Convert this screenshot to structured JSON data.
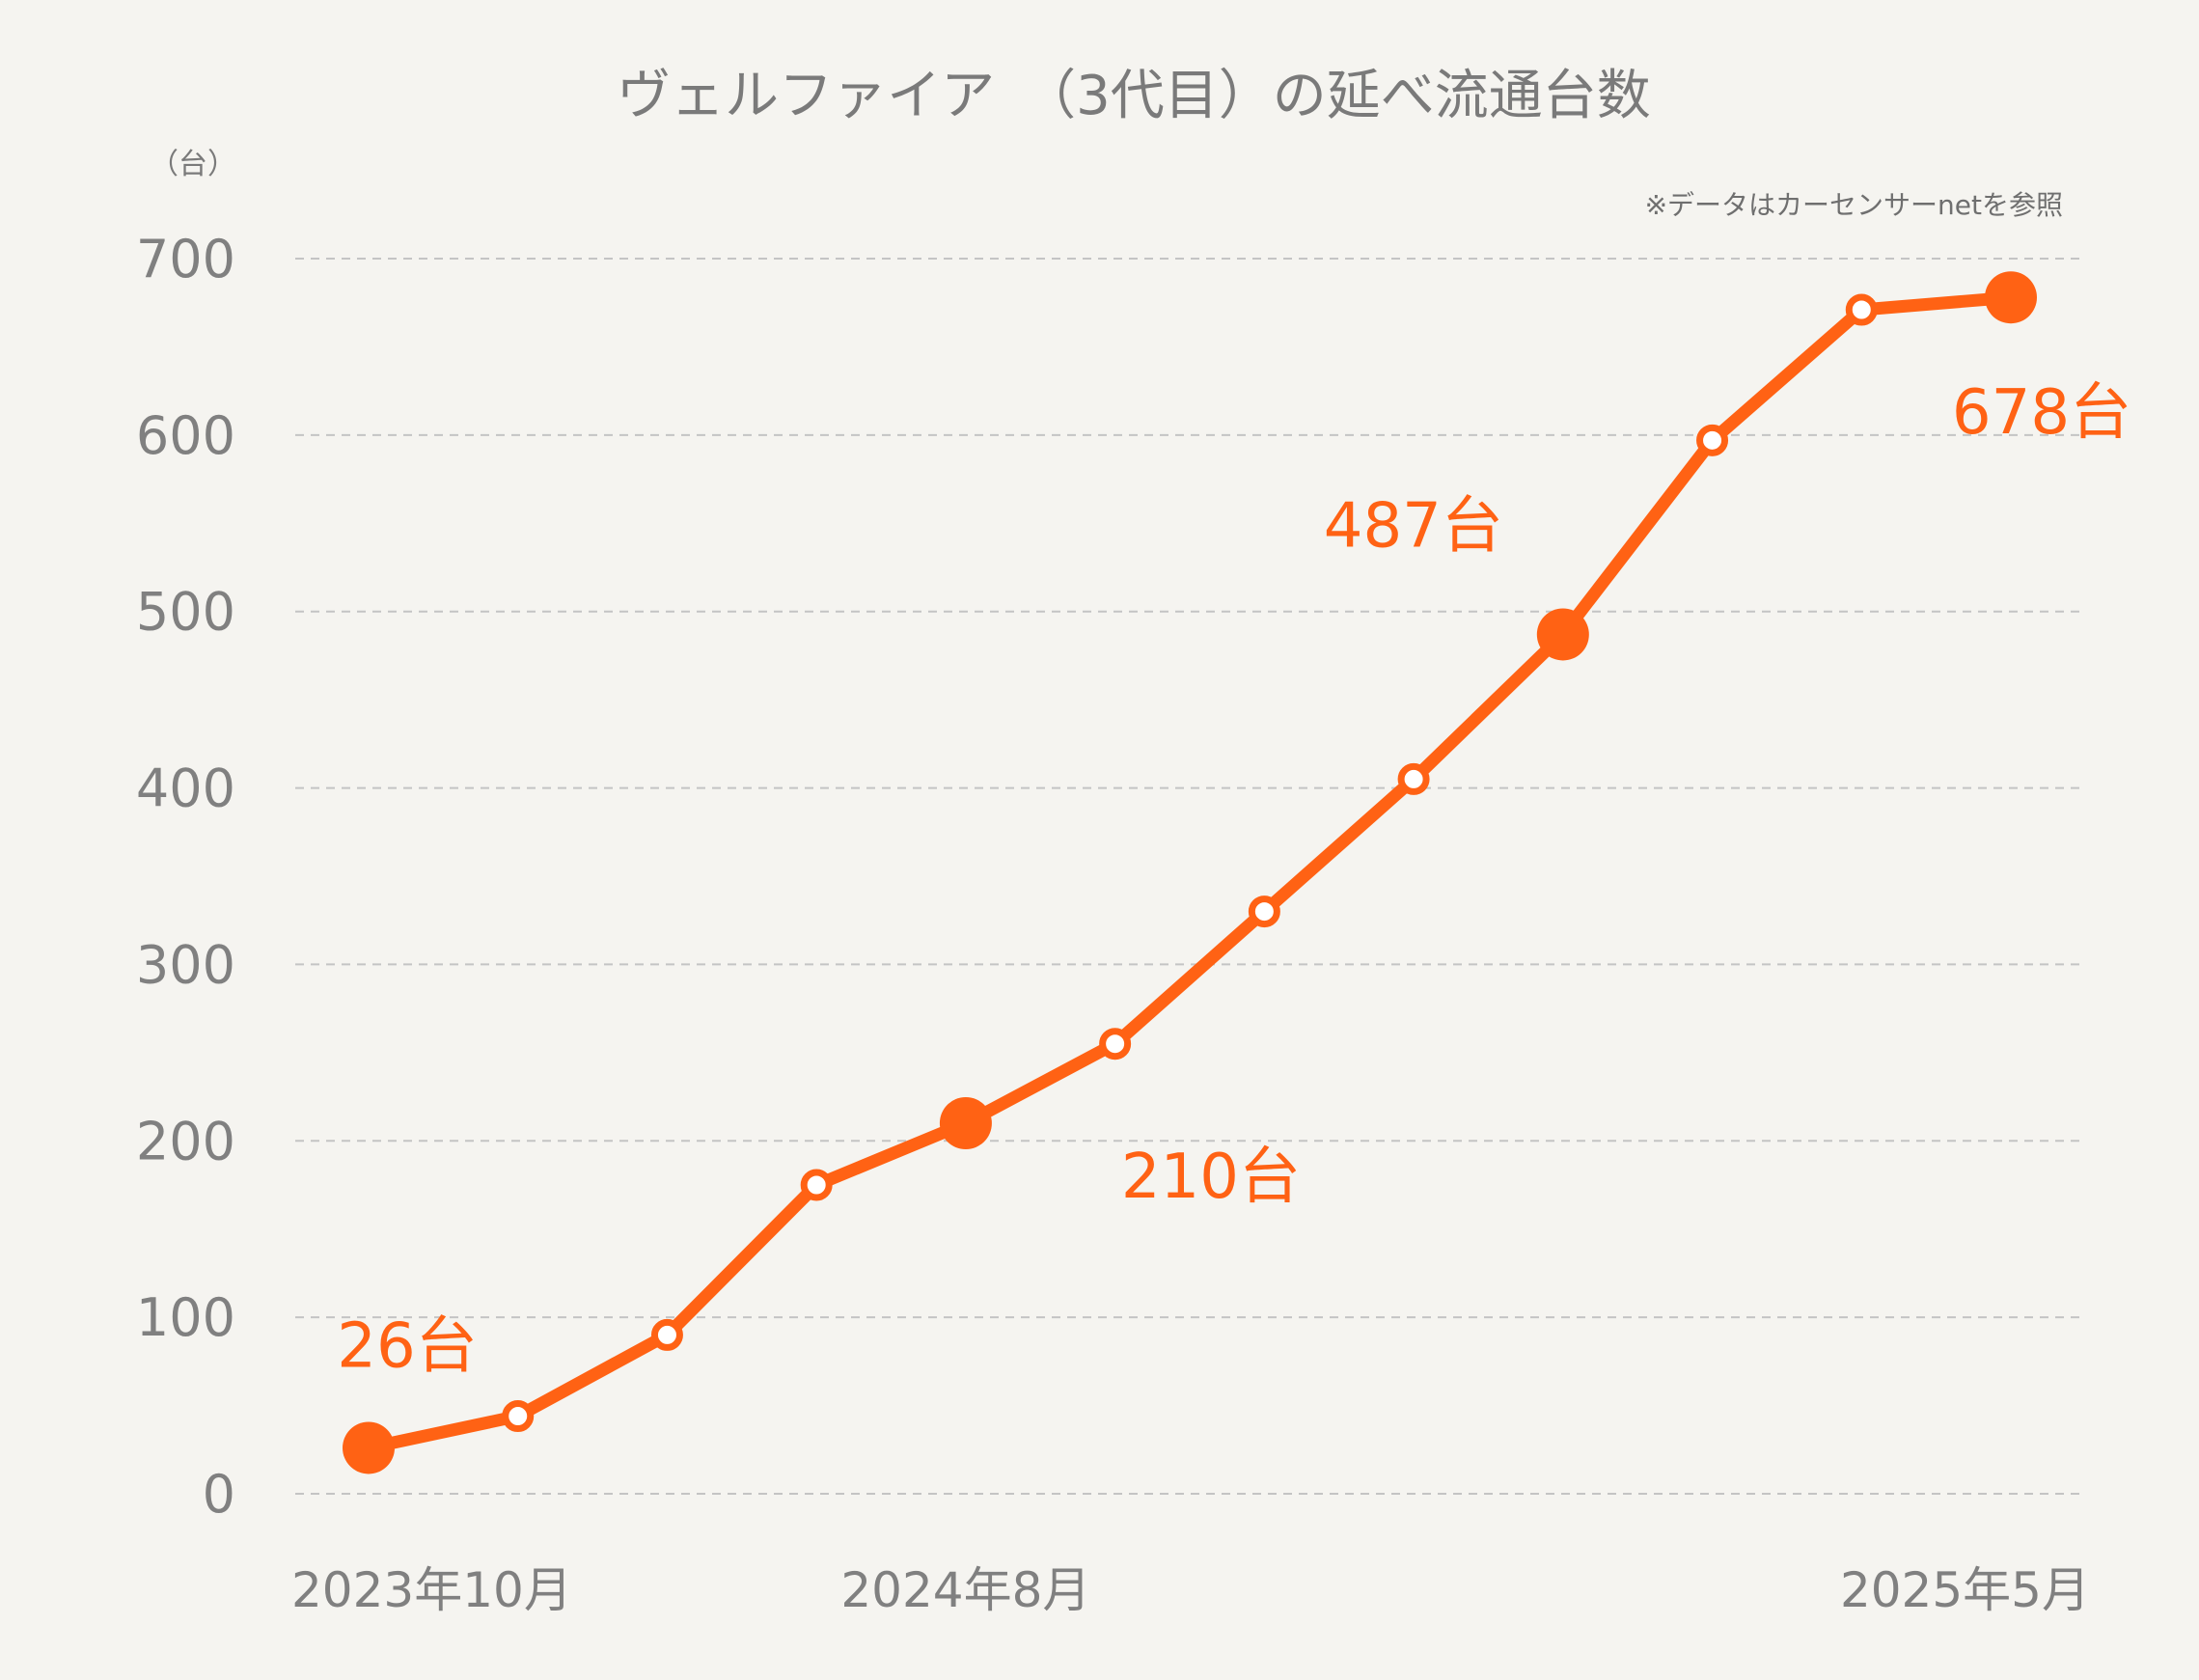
{
  "chart_data": {
    "type": "line",
    "title": "ヴェルファイア　（3代目）の延べ流通台数",
    "ylabel": "（台）",
    "note": "※データはカーセンサーnetを参照",
    "ylim": [
      0,
      700
    ],
    "yticks": [
      0,
      100,
      200,
      300,
      400,
      500,
      600,
      700
    ],
    "grid": true,
    "x_labels": [
      {
        "index": 0,
        "text": "2023年10月"
      },
      {
        "index": 4,
        "text": "2024年8月"
      },
      {
        "index": 11,
        "text": "2025年5月"
      }
    ],
    "series": [
      {
        "color": "#ff6214",
        "values": [
          26,
          44,
          90,
          175,
          210,
          255,
          330,
          405,
          487,
          597,
          671,
          678
        ],
        "highlight": [
          0,
          4,
          8,
          11
        ]
      }
    ],
    "annotations": [
      {
        "index": 0,
        "text": "26台"
      },
      {
        "index": 4,
        "text": "210台"
      },
      {
        "index": 8,
        "text": "487台"
      },
      {
        "index": 11,
        "text": "678台"
      }
    ]
  }
}
